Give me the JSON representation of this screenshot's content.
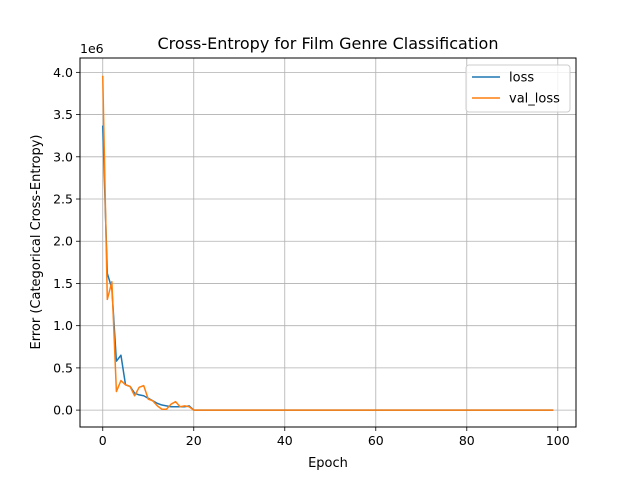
{
  "chart_data": {
    "type": "line",
    "title": "Cross-Entropy for Film Genre Classification",
    "xlabel": "Epoch",
    "ylabel": "Error (Categorical Cross-Entropy)",
    "offset_label": "1e6",
    "xlim": [
      -5,
      104
    ],
    "ylim": [
      -0.2,
      4.17
    ],
    "xticks": [
      0,
      20,
      40,
      60,
      80,
      100
    ],
    "yticks": [
      0.0,
      0.5,
      1.0,
      1.5,
      2.0,
      2.5,
      3.0,
      3.5,
      4.0
    ],
    "ytick_labels": [
      "0.0",
      "0.5",
      "1.0",
      "1.5",
      "2.0",
      "2.5",
      "3.0",
      "3.5",
      "4.0"
    ],
    "grid": true,
    "legend_position": "top-right",
    "series": [
      {
        "name": "loss",
        "color": "#1f77b4",
        "points": [
          [
            0,
            3.37
          ],
          [
            1,
            1.62
          ],
          [
            2,
            1.44
          ],
          [
            3,
            0.58
          ],
          [
            4,
            0.65
          ],
          [
            5,
            0.3
          ],
          [
            6,
            0.28
          ],
          [
            7,
            0.2
          ],
          [
            8,
            0.18
          ],
          [
            9,
            0.17
          ],
          [
            10,
            0.14
          ],
          [
            11,
            0.11
          ],
          [
            12,
            0.08
          ],
          [
            13,
            0.06
          ],
          [
            14,
            0.05
          ],
          [
            15,
            0.04
          ],
          [
            16,
            0.04
          ],
          [
            17,
            0.04
          ],
          [
            18,
            0.04
          ],
          [
            19,
            0.05
          ],
          [
            20,
            0.0
          ],
          [
            99,
            0.0
          ]
        ]
      },
      {
        "name": "val_loss",
        "color": "#ff7f0e",
        "points": [
          [
            0,
            3.96
          ],
          [
            1,
            1.31
          ],
          [
            2,
            1.52
          ],
          [
            3,
            0.22
          ],
          [
            4,
            0.35
          ],
          [
            5,
            0.3
          ],
          [
            6,
            0.28
          ],
          [
            7,
            0.17
          ],
          [
            8,
            0.27
          ],
          [
            9,
            0.29
          ],
          [
            10,
            0.13
          ],
          [
            11,
            0.11
          ],
          [
            12,
            0.05
          ],
          [
            13,
            0.01
          ],
          [
            14,
            0.01
          ],
          [
            15,
            0.07
          ],
          [
            16,
            0.1
          ],
          [
            17,
            0.04
          ],
          [
            18,
            0.05
          ],
          [
            19,
            0.04
          ],
          [
            20,
            0.0
          ],
          [
            99,
            0.0
          ]
        ]
      }
    ]
  }
}
